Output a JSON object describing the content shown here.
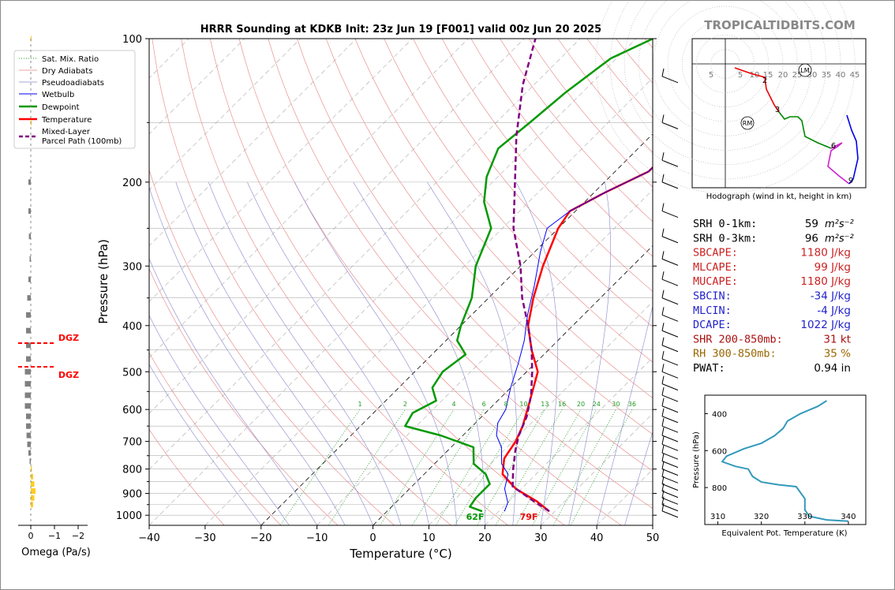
{
  "title": "HRRR Sounding at KDKB Init: 23z Jun 19 [F001] valid 00z Jun 20 2025",
  "watermark": "TROPICALTIDBITS.COM",
  "colors": {
    "temperature": "#ff0000",
    "dewpoint": "#009900",
    "parcel": "#800080",
    "wetbulb": "#0000ff",
    "omega_neg": "#808080",
    "omega_pos": "#ffcc22",
    "theta_e": "#3399bb",
    "dgz": "#ff0000"
  },
  "skewt": {
    "xlabel": "Temperature (°C)",
    "ylabel": "Pressure (hPa)",
    "x_ticks": [
      "−40",
      "−30",
      "−20",
      "−10",
      "0",
      "10",
      "20",
      "30",
      "40",
      "50"
    ],
    "y_ticks": [
      "100",
      "200",
      "300",
      "400",
      "500",
      "600",
      "700",
      "800",
      "900",
      "1000"
    ],
    "surface_temp_label": "79F",
    "surface_dewpoint_label": "62F",
    "mixing_ratio_labels": [
      "1",
      "2",
      "4",
      "6",
      "8",
      "10",
      "13",
      "16",
      "20",
      "24",
      "30",
      "36"
    ],
    "legend": [
      "Sat. Mix. Ratio",
      "Dry Adiabats",
      "Pseudoadiabats",
      "Wetbulb",
      "Dewpoint",
      "Temperature",
      "Mixed-Layer",
      "Parcel Path (100mb)"
    ]
  },
  "omega": {
    "xlabel": "Omega (Pa/s)",
    "x_ticks": [
      "0",
      "−1",
      "−2"
    ],
    "dgz_label": "DGZ"
  },
  "hodograph": {
    "caption": "Hodograph (wind in kt, height in km)",
    "ring_labels": [
      "5",
      "5",
      "10",
      "15",
      "20",
      "25",
      "30",
      "35",
      "40",
      "45"
    ],
    "point_labels": [
      "2",
      "3",
      "6",
      "9"
    ],
    "markers": [
      "LM",
      "RM"
    ]
  },
  "indices": [
    {
      "name": "SRH 0-1km:",
      "value": "59",
      "unit": "m²s⁻²",
      "color": "#000000"
    },
    {
      "name": "SRH 0-3km:",
      "value": "96",
      "unit": "m²s⁻²",
      "color": "#000000"
    },
    {
      "name": "SBCAPE:",
      "value": "1180 J/kg",
      "color": "#cc2222"
    },
    {
      "name": "MLCAPE:",
      "value": "99 J/kg",
      "color": "#cc2222"
    },
    {
      "name": "MUCAPE:",
      "value": "1180 J/kg",
      "color": "#cc2222"
    },
    {
      "name": "SBCIN:",
      "value": "-34 J/kg",
      "color": "#2222cc"
    },
    {
      "name": "MLCIN:",
      "value": "-4 J/kg",
      "color": "#2222cc"
    },
    {
      "name": "DCAPE:",
      "value": "1022 J/kg",
      "color": "#2222cc"
    },
    {
      "name": "SHR 200-850mb:",
      "value": "31 kt",
      "color": "#aa1111"
    },
    {
      "name": "RH 300-850mb:",
      "value": "35 %",
      "color": "#996600"
    },
    {
      "name": "PWAT:",
      "value": "0.94 in",
      "color": "#000000"
    }
  ],
  "theta_e_plot": {
    "xlabel": "Equivalent Pot. Temperature (K)",
    "ylabel": "Pressure (hPa)",
    "x_ticks": [
      "310",
      "320",
      "330",
      "340"
    ],
    "y_ticks": [
      "400",
      "600",
      "800"
    ]
  },
  "chart_data": [
    {
      "type": "line",
      "title": "HRRR Sounding at KDKB Init: 23z Jun 19 [F001] valid 00z Jun 20 2025",
      "xlabel": "Temperature (°C)",
      "ylabel": "Pressure (hPa)",
      "xlim": [
        -40,
        50
      ],
      "ylim": [
        1050,
        100
      ],
      "y_scale": "log",
      "series": [
        {
          "name": "Temperature",
          "points": [
            [
              29,
              981
            ],
            [
              25,
              935
            ],
            [
              19,
              880
            ],
            [
              14,
              820
            ],
            [
              11.5,
              760
            ],
            [
              10.5,
              700
            ],
            [
              9,
              650
            ],
            [
              6,
              580
            ],
            [
              2,
              500
            ],
            [
              -3,
              450
            ],
            [
              -8,
              400
            ],
            [
              -12,
              350
            ],
            [
              -16,
              300
            ],
            [
              -20,
              250
            ],
            [
              -21,
              230
            ],
            [
              -18,
              210
            ],
            [
              -14,
              190
            ],
            [
              -14,
              170
            ],
            [
              -14,
              150
            ],
            [
              -14,
              130
            ],
            [
              -12,
              110
            ],
            [
              -9,
              100
            ]
          ]
        },
        {
          "name": "Dewpoint",
          "points": [
            [
              17,
              981
            ],
            [
              14,
              960
            ],
            [
              13.5,
              920
            ],
            [
              13.5,
              860
            ],
            [
              11,
              820
            ],
            [
              7,
              780
            ],
            [
              4,
              720
            ],
            [
              -4,
              680
            ],
            [
              -12,
              650
            ],
            [
              -13,
              610
            ],
            [
              -11,
              575
            ],
            [
              -14,
              540
            ],
            [
              -15,
              500
            ],
            [
              -14,
              460
            ],
            [
              -18,
              430
            ],
            [
              -20,
              400
            ],
            [
              -23,
              350
            ],
            [
              -28,
              300
            ],
            [
              -32,
              250
            ],
            [
              -38,
              220
            ],
            [
              -42,
              195
            ],
            [
              -45,
              170
            ],
            [
              -44,
              150
            ],
            [
              -43,
              130
            ],
            [
              -41,
              110
            ],
            [
              -37,
              100
            ]
          ]
        },
        {
          "name": "Wetbulb",
          "points": [
            [
              21,
              981
            ],
            [
              20,
              940
            ],
            [
              17,
              880
            ],
            [
              15,
              820
            ],
            [
              12,
              780
            ],
            [
              9,
              720
            ],
            [
              6,
              680
            ],
            [
              4,
              640
            ],
            [
              3,
              600
            ],
            [
              0,
              540
            ],
            [
              -3,
              480
            ],
            [
              -6,
              430
            ],
            [
              -10,
              380
            ],
            [
              -14,
              330
            ],
            [
              -19,
              280
            ],
            [
              -22,
              250
            ],
            [
              -21,
              230
            ],
            [
              -18,
              210
            ],
            [
              -14,
              190
            ],
            [
              -14,
              170
            ],
            [
              -14,
              150
            ],
            [
              -14,
              130
            ],
            [
              -12,
              110
            ],
            [
              -9,
              100
            ]
          ]
        },
        {
          "name": "Mixed-Layer Parcel Path (100mb)",
          "points": [
            [
              29,
              981
            ],
            [
              24,
              930
            ],
            [
              18,
              870
            ],
            [
              15,
              800
            ],
            [
              12,
              730
            ],
            [
              10,
              680
            ],
            [
              8,
              620
            ],
            [
              5,
              560
            ],
            [
              1,
              500
            ],
            [
              -3,
              450
            ],
            [
              -8,
              400
            ],
            [
              -14,
              350
            ],
            [
              -20,
              300
            ],
            [
              -28,
              250
            ],
            [
              -36,
              200
            ],
            [
              -44,
              160
            ],
            [
              -52,
              125
            ],
            [
              -58,
              100
            ]
          ]
        }
      ]
    },
    {
      "type": "line",
      "xlabel": "Equivalent Pot. Temperature (K)",
      "ylabel": "Pressure (hPa)",
      "xlim": [
        307,
        344
      ],
      "ylim": [
        1000,
        300
      ],
      "series": [
        {
          "name": "Equivalent Pot. Temperature",
          "points": [
            [
              340,
              982
            ],
            [
              335,
              975
            ],
            [
              331,
              955
            ],
            [
              330,
              920
            ],
            [
              330,
              860
            ],
            [
              328,
              795
            ],
            [
              324,
              785
            ],
            [
              320,
              770
            ],
            [
              318,
              740
            ],
            [
              317,
              700
            ],
            [
              314,
              685
            ],
            [
              311,
              660
            ],
            [
              312,
              630
            ],
            [
              316,
              590
            ],
            [
              320,
              560
            ],
            [
              323,
              520
            ],
            [
              325,
              480
            ],
            [
              326,
              440
            ],
            [
              329,
              400
            ],
            [
              333,
              360
            ],
            [
              335,
              330
            ]
          ]
        }
      ]
    },
    {
      "type": "bar",
      "xlabel": "Omega (Pa/s)",
      "xlim": [
        0.5,
        -3
      ],
      "categories": [
        100,
        150,
        200,
        230,
        260,
        290,
        320,
        350,
        380,
        410,
        440,
        470,
        500,
        530,
        560,
        590,
        620,
        650,
        680,
        710,
        740,
        770,
        800,
        830,
        860,
        890,
        920,
        950
      ],
      "values": [
        0.01,
        0.02,
        -0.1,
        -0.1,
        -0.08,
        -0.05,
        -0.1,
        -0.15,
        -0.2,
        -0.2,
        -0.2,
        -0.2,
        -0.25,
        -0.25,
        -0.25,
        -0.25,
        -0.2,
        -0.2,
        -0.18,
        -0.15,
        -0.1,
        -0.05,
        0.05,
        0.1,
        0.15,
        0.2,
        0.15,
        0.1
      ]
    }
  ]
}
